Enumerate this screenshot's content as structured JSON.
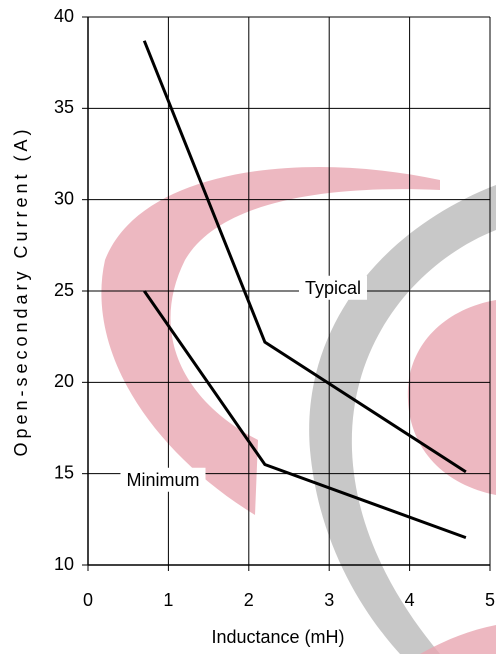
{
  "chart_data": {
    "type": "line",
    "x_label": "Inductance (mH)",
    "y_label": "Open-secondary Current (A)",
    "xlim": [
      0,
      5
    ],
    "xticks": [
      0,
      1,
      2,
      3,
      4,
      5
    ],
    "ylim": [
      10,
      40
    ],
    "yticks": [
      10,
      15,
      20,
      25,
      30,
      35,
      40
    ],
    "grid": true,
    "series": [
      {
        "name": "Typical",
        "color": "#000000",
        "x": [
          0.7,
          2.2,
          4.7
        ],
        "values": [
          38.7,
          22.2,
          15.1
        ]
      },
      {
        "name": "Minimum",
        "color": "#000000",
        "x": [
          0.7,
          2.2,
          4.7
        ],
        "values": [
          25.0,
          15.5,
          11.5
        ]
      }
    ]
  }
}
